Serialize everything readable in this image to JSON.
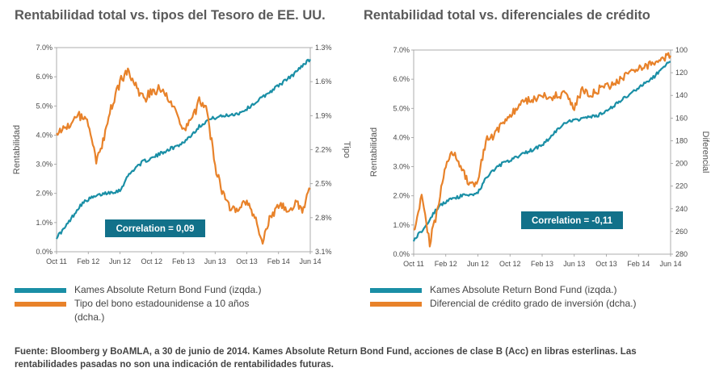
{
  "colors": {
    "fund": "#1a8fa6",
    "orange": "#e8822a",
    "box": "#12718a"
  },
  "chart_data": [
    {
      "type": "line",
      "title": "Rentabilidad total vs. tipos del Tesoro de EE. UU.",
      "x_ticks": [
        "Oct 11",
        "Feb 12",
        "Jun 12",
        "Oct 12",
        "Feb 13",
        "Jun 13",
        "Oct 13",
        "Feb 14",
        "Jun 14"
      ],
      "xlim": [
        "2011-10",
        "2014-06"
      ],
      "ylabel_left": "Rentabilidad",
      "ylim_left": [
        0,
        7
      ],
      "y_ticks_left": [
        "0.0%",
        "1.0%",
        "2.0%",
        "3.0%",
        "4.0%",
        "5.0%",
        "6.0%",
        "7.0%"
      ],
      "ylabel_right": "Tipo",
      "ylim_right": [
        3.1,
        1.3
      ],
      "right_axis_inverted": true,
      "y_ticks_right": [
        "1.3%",
        "1.6%",
        "1.9%",
        "2.2%",
        "2.5%",
        "2.8%",
        "3.1%"
      ],
      "annotation": "Correlation = 0,09",
      "series": [
        {
          "name": "Kames Absolute Return Bond Fund (izqda.)",
          "axis": "left",
          "x": [
            "2011-10",
            "2011-11",
            "2011-12",
            "2012-01",
            "2012-02",
            "2012-03",
            "2012-04",
            "2012-05",
            "2012-06",
            "2012-07",
            "2012-08",
            "2012-09",
            "2012-10",
            "2012-11",
            "2012-12",
            "2013-01",
            "2013-02",
            "2013-03",
            "2013-04",
            "2013-05",
            "2013-06",
            "2013-07",
            "2013-08",
            "2013-09",
            "2013-10",
            "2013-11",
            "2013-12",
            "2014-01",
            "2014-02",
            "2014-03",
            "2014-04",
            "2014-05",
            "2014-06"
          ],
          "values": [
            0.5,
            0.8,
            1.2,
            1.6,
            1.8,
            1.9,
            2.0,
            2.05,
            2.1,
            2.6,
            2.9,
            3.1,
            3.2,
            3.35,
            3.5,
            3.6,
            3.75,
            4.0,
            4.3,
            4.5,
            4.6,
            4.65,
            4.7,
            4.75,
            4.9,
            5.1,
            5.3,
            5.5,
            5.7,
            5.9,
            6.1,
            6.4,
            6.6
          ]
        },
        {
          "name": "Tipo del bono estadounidense a 10 años (dcha.)",
          "axis": "right",
          "x": [
            "2011-10",
            "2011-11",
            "2011-12",
            "2012-01",
            "2012-02",
            "2012-03",
            "2012-04",
            "2012-05",
            "2012-06",
            "2012-07",
            "2012-08",
            "2012-09",
            "2012-10",
            "2012-11",
            "2012-12",
            "2013-01",
            "2013-02",
            "2013-03",
            "2013-04",
            "2013-05",
            "2013-06",
            "2013-07",
            "2013-08",
            "2013-09",
            "2013-10",
            "2013-11",
            "2013-12",
            "2014-01",
            "2014-02",
            "2014-03",
            "2014-04",
            "2014-05",
            "2014-06"
          ],
          "values": [
            2.1,
            2.0,
            1.95,
            1.9,
            1.95,
            2.3,
            2.1,
            1.8,
            1.6,
            1.5,
            1.65,
            1.75,
            1.7,
            1.65,
            1.72,
            1.85,
            2.0,
            1.95,
            1.78,
            1.85,
            2.35,
            2.6,
            2.75,
            2.7,
            2.65,
            2.8,
            3.0,
            2.8,
            2.7,
            2.72,
            2.68,
            2.72,
            2.55
          ]
        }
      ]
    },
    {
      "type": "line",
      "title": "Rentabilidad total vs. diferenciales de crédito",
      "x_ticks": [
        "Oct 11",
        "Feb 12",
        "Jun 12",
        "Oct 12",
        "Feb 13",
        "Jun 13",
        "Oct 13",
        "Feb 14",
        "Jun 14"
      ],
      "xlim": [
        "2011-10",
        "2014-06"
      ],
      "ylabel_left": "Rentabilidad",
      "ylim_left": [
        0,
        7
      ],
      "y_ticks_left": [
        "0.0%",
        "1.0%",
        "2.0%",
        "3.0%",
        "4.0%",
        "5.0%",
        "6.0%",
        "7.0%"
      ],
      "ylabel_right": "Diferencial",
      "ylim_right": [
        280,
        100
      ],
      "right_axis_inverted": true,
      "y_ticks_right": [
        "100",
        "120",
        "140",
        "160",
        "180",
        "200",
        "220",
        "240",
        "260",
        "280"
      ],
      "annotation": "Correlation = -0,11",
      "series": [
        {
          "name": "Kames Absolute Return Bond Fund (izqda.)",
          "axis": "left",
          "x": [
            "2011-10",
            "2011-11",
            "2011-12",
            "2012-01",
            "2012-02",
            "2012-03",
            "2012-04",
            "2012-05",
            "2012-06",
            "2012-07",
            "2012-08",
            "2012-09",
            "2012-10",
            "2012-11",
            "2012-12",
            "2013-01",
            "2013-02",
            "2013-03",
            "2013-04",
            "2013-05",
            "2013-06",
            "2013-07",
            "2013-08",
            "2013-09",
            "2013-10",
            "2013-11",
            "2013-12",
            "2014-01",
            "2014-02",
            "2014-03",
            "2014-04",
            "2014-05",
            "2014-06"
          ],
          "values": [
            0.5,
            0.8,
            1.2,
            1.6,
            1.8,
            1.9,
            2.0,
            2.05,
            2.1,
            2.6,
            2.9,
            3.1,
            3.2,
            3.35,
            3.5,
            3.6,
            3.75,
            4.0,
            4.3,
            4.5,
            4.6,
            4.65,
            4.7,
            4.75,
            4.9,
            5.1,
            5.3,
            5.5,
            5.7,
            5.9,
            6.1,
            6.4,
            6.6
          ]
        },
        {
          "name": "Diferencial de crédito grado de inversión (dcha.)",
          "axis": "right",
          "x": [
            "2011-10",
            "2011-11",
            "2011-12",
            "2012-01",
            "2012-02",
            "2012-03",
            "2012-04",
            "2012-05",
            "2012-06",
            "2012-07",
            "2012-08",
            "2012-09",
            "2012-10",
            "2012-11",
            "2012-12",
            "2013-01",
            "2013-02",
            "2013-03",
            "2013-04",
            "2013-05",
            "2013-06",
            "2013-07",
            "2013-08",
            "2013-09",
            "2013-10",
            "2013-11",
            "2013-12",
            "2014-01",
            "2014-02",
            "2014-03",
            "2014-04",
            "2014-05",
            "2014-06"
          ],
          "values": [
            262,
            230,
            270,
            240,
            200,
            190,
            205,
            220,
            215,
            180,
            175,
            165,
            158,
            150,
            145,
            143,
            140,
            142,
            140,
            138,
            150,
            135,
            140,
            135,
            132,
            130,
            125,
            120,
            115,
            115,
            110,
            108,
            105
          ]
        }
      ]
    }
  ],
  "legend_left": {
    "fund": "Kames Absolute Return Bond Fund (izqda.)",
    "second_line1": "Tipo del bono estadounidense a 10 años",
    "second_line2": "(dcha.)"
  },
  "legend_right": {
    "fund": "Kames Absolute Return Bond Fund (izqda.)",
    "second": "Diferencial de crédito grado de inversión (dcha.)"
  },
  "footnote": "Fuente: Bloomberg y BoAMLA, a 30 de junio de 2014. Kames Absolute Return Bond Fund, acciones de clase B (Acc) en libras esterlinas. Las rentabilidades pasadas no son una indicación de rentabilidades futuras."
}
